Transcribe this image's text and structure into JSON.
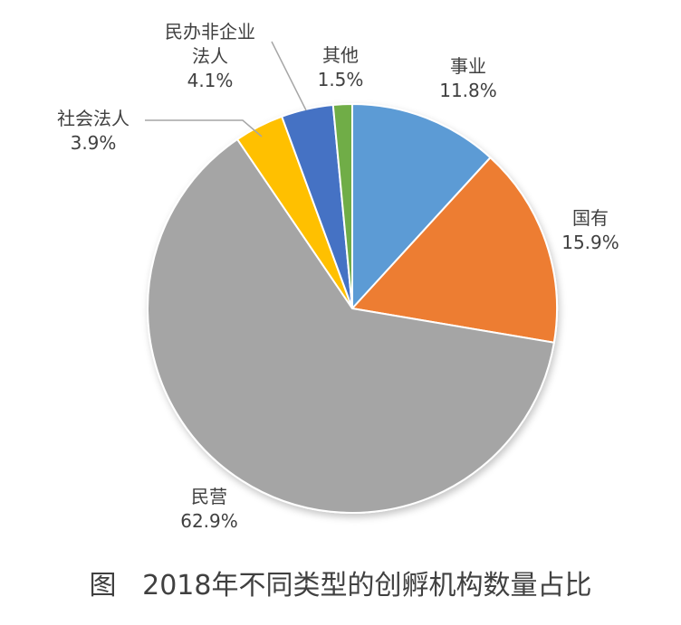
{
  "chart_data": {
    "type": "pie",
    "title": "",
    "slices": [
      {
        "name": "事业",
        "value": 11.8,
        "value_label": "11.8%",
        "color": "#5b9bd5",
        "label_lines": [
          "事业"
        ]
      },
      {
        "name": "国有",
        "value": 15.9,
        "value_label": "15.9%",
        "color": "#ed7d31",
        "label_lines": [
          "国有"
        ]
      },
      {
        "name": "民营",
        "value": 62.9,
        "value_label": "62.9%",
        "color": "#a5a5a5",
        "label_lines": [
          "民营"
        ]
      },
      {
        "name": "社会法人",
        "value": 3.9,
        "value_label": "3.9%",
        "color": "#ffc000",
        "label_lines": [
          "社会法人"
        ]
      },
      {
        "name": "民办非企业法人",
        "value": 4.1,
        "value_label": "4.1%",
        "color": "#4472c4",
        "label_lines": [
          "民办非企业",
          "法人"
        ]
      },
      {
        "name": "其他",
        "value": 1.5,
        "value_label": "1.5%",
        "color": "#70ad47",
        "label_lines": [
          "其他"
        ]
      }
    ],
    "start_angle_deg": 0,
    "direction": "clockwise",
    "legend": "none",
    "data_labels": "outside, category name and percentage",
    "leader_lines": true
  },
  "caption": "图   2018年不同类型的创孵机构数量占比"
}
